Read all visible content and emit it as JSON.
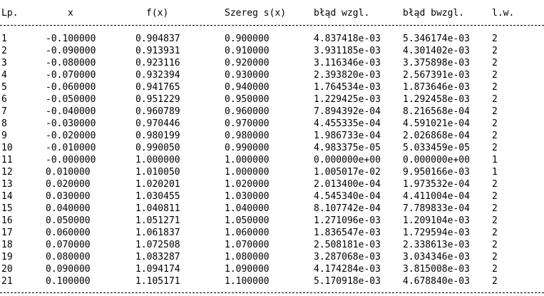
{
  "table": {
    "header": [
      "Lp.",
      "x",
      "f(x)",
      "Szereg s(x)",
      "błąd wzgl.",
      "błąd bwzgl.",
      "l.w."
    ],
    "rows": [
      [
        "1",
        "-0.100000",
        "0.904837",
        "0.900000",
        "4.837418e-03",
        "5.346174e-03",
        "2"
      ],
      [
        "2",
        "-0.090000",
        "0.913931",
        "0.910000",
        "3.931185e-03",
        "4.301402e-03",
        "2"
      ],
      [
        "3",
        "-0.080000",
        "0.923116",
        "0.920000",
        "3.116346e-03",
        "3.375898e-03",
        "2"
      ],
      [
        "4",
        "-0.070000",
        "0.932394",
        "0.930000",
        "2.393820e-03",
        "2.567391e-03",
        "2"
      ],
      [
        "5",
        "-0.060000",
        "0.941765",
        "0.940000",
        "1.764534e-03",
        "1.873646e-03",
        "2"
      ],
      [
        "6",
        "-0.050000",
        "0.951229",
        "0.950000",
        "1.229425e-03",
        "1.292458e-03",
        "2"
      ],
      [
        "7",
        "-0.040000",
        "0.960789",
        "0.960000",
        "7.894392e-04",
        "8.216568e-04",
        "2"
      ],
      [
        "8",
        "-0.030000",
        "0.970446",
        "0.970000",
        "4.455335e-04",
        "4.591021e-04",
        "2"
      ],
      [
        "9",
        "-0.020000",
        "0.980199",
        "0.980000",
        "1.986733e-04",
        "2.026868e-04",
        "2"
      ],
      [
        "10",
        "-0.010000",
        "0.990050",
        "0.990000",
        "4.983375e-05",
        "5.033459e-05",
        "2"
      ],
      [
        "11",
        "-0.000000",
        "1.000000",
        "1.000000",
        "0.000000e+00",
        "0.000000e+00",
        "1"
      ],
      [
        "12",
        "0.010000",
        "1.010050",
        "1.000000",
        "1.005017e-02",
        "9.950166e-03",
        "1"
      ],
      [
        "13",
        "0.020000",
        "1.020201",
        "1.020000",
        "2.013400e-04",
        "1.973532e-04",
        "2"
      ],
      [
        "14",
        "0.030000",
        "1.030455",
        "1.030000",
        "4.545340e-04",
        "4.411004e-04",
        "2"
      ],
      [
        "15",
        "0.040000",
        "1.040811",
        "1.040000",
        "8.107742e-04",
        "7.789833e-04",
        "2"
      ],
      [
        "16",
        "0.050000",
        "1.051271",
        "1.050000",
        "1.271096e-03",
        "1.209104e-03",
        "2"
      ],
      [
        "17",
        "0.060000",
        "1.061837",
        "1.060000",
        "1.836547e-03",
        "1.729594e-03",
        "2"
      ],
      [
        "18",
        "0.070000",
        "1.072508",
        "1.070000",
        "2.508181e-03",
        "2.338613e-03",
        "2"
      ],
      [
        "19",
        "0.080000",
        "1.083287",
        "1.080000",
        "3.287068e-03",
        "3.034346e-03",
        "2"
      ],
      [
        "20",
        "0.090000",
        "1.094174",
        "1.090000",
        "4.174284e-03",
        "3.815008e-03",
        "2"
      ],
      [
        "21",
        "0.100000",
        "1.105171",
        "1.100000",
        "5.170918e-03",
        "4.678840e-03",
        "2"
      ]
    ]
  }
}
